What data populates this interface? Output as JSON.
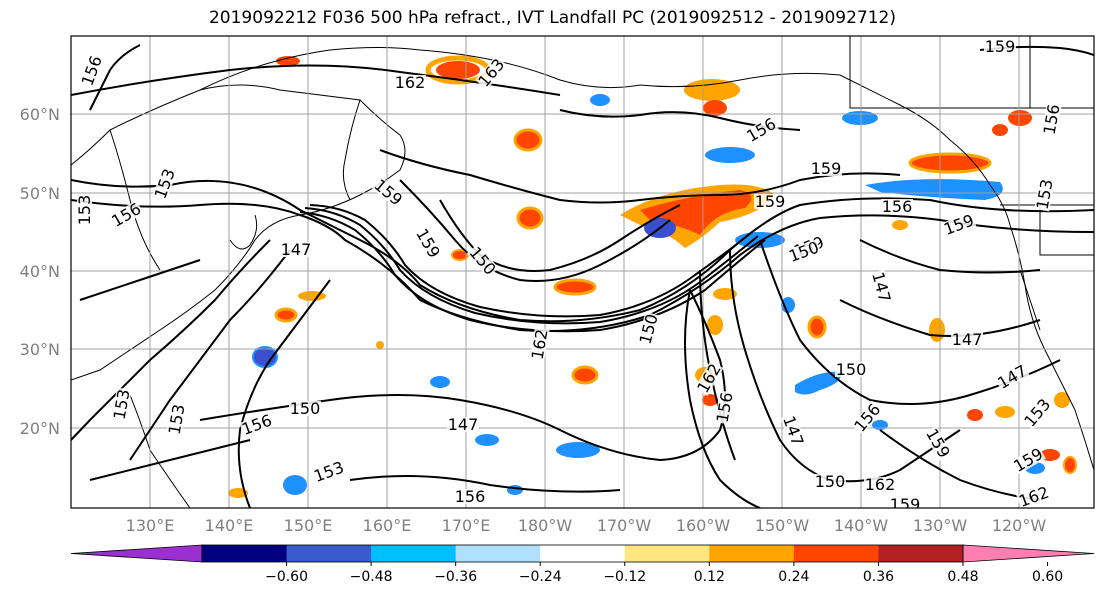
{
  "title": "2019092212 F036 500 hPa refract., IVT Landfall PC (2019092512 - 2019092712)",
  "map": {
    "lat_labels": [
      "60°N",
      "50°N",
      "40°N",
      "30°N",
      "20°N"
    ],
    "lon_labels": [
      "130°E",
      "140°E",
      "150°E",
      "160°E",
      "170°E",
      "180°W",
      "170°W",
      "160°W",
      "150°W",
      "140°W",
      "130°W",
      "120°W"
    ],
    "contour_labels": [
      "156",
      "162",
      "163",
      "159",
      "156",
      "159",
      "153",
      "156",
      "153",
      "162",
      "153",
      "147",
      "159",
      "150",
      "156",
      "159",
      "153",
      "159",
      "150",
      "147",
      "147",
      "150",
      "153",
      "156",
      "162",
      "150",
      "156",
      "147",
      "150",
      "147",
      "156",
      "159",
      "156",
      "159",
      "150",
      "162",
      "159",
      "153",
      "162",
      "147",
      "159",
      "153",
      "159",
      "156"
    ],
    "contour_color": "#000000",
    "shading": {
      "orange": "#ffa500",
      "dark_orange": "#ff4500",
      "light_yellow": "#ffe680",
      "light_blue": "#7fcfff",
      "blue": "#1e90ff",
      "dark_blue": "#3a4fd0"
    }
  },
  "colorbar": {
    "colors": [
      "#9b30d0",
      "#000080",
      "#3a5bcd",
      "#00bfff",
      "#b0e0ff",
      "#ffffff",
      "#ffe680",
      "#ffa500",
      "#ff4500",
      "#b22222",
      "#ff80b0"
    ],
    "tick_labels": [
      "−0.60",
      "−0.48",
      "−0.36",
      "−0.24",
      "−0.12",
      "0.12",
      "0.24",
      "0.36",
      "0.48",
      "0.60"
    ]
  }
}
